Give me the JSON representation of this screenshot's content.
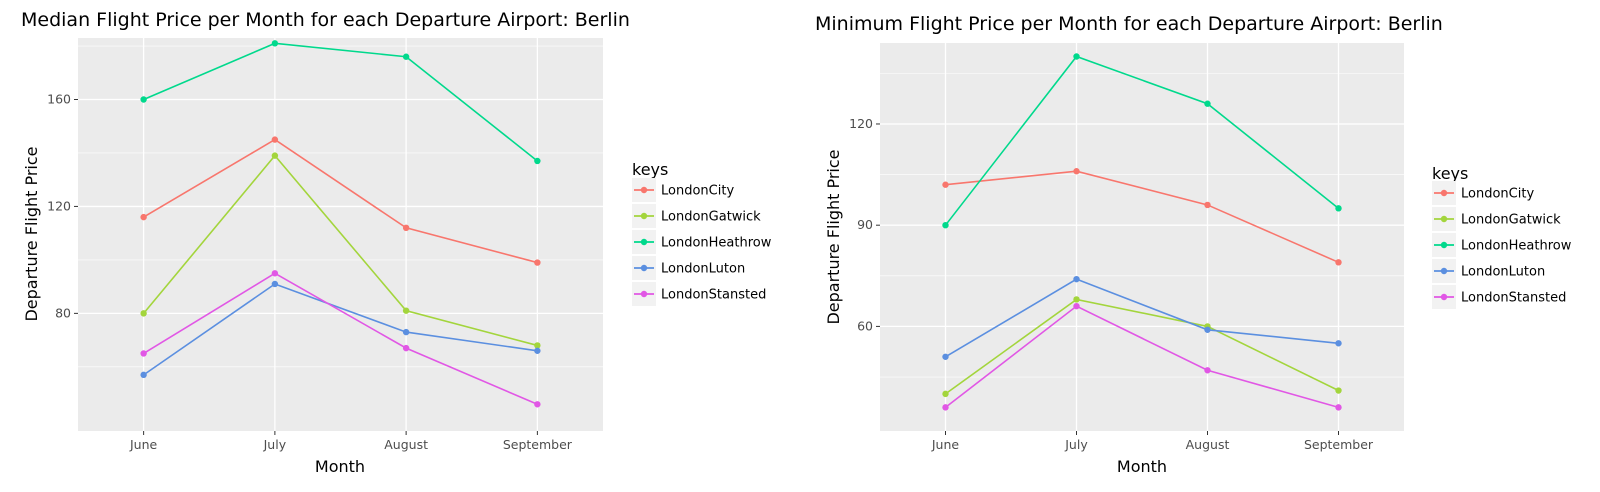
{
  "colors": {
    "panel_bg": "#EBEBEB",
    "grid_major": "#FFFFFF",
    "legend_key_bg": "#F2F2F2"
  },
  "legend": {
    "title": "keys",
    "entries": [
      {
        "name": "LondonCity",
        "color": "#F8766D"
      },
      {
        "name": "LondonGatwick",
        "color": "#A3D53C"
      },
      {
        "name": "LondonHeathrow",
        "color": "#00D98C"
      },
      {
        "name": "LondonLuton",
        "color": "#5B8FE0"
      },
      {
        "name": "LondonStansted",
        "color": "#E157E5"
      }
    ]
  },
  "chart_data": [
    {
      "type": "line",
      "title": "Median Flight Price per Month for each Departure Airport: Berlin",
      "xlabel": "Month",
      "ylabel": "Departure Flight Price",
      "categories": [
        "June",
        "July",
        "August",
        "September"
      ],
      "ylim": [
        36,
        183
      ],
      "yticks": [
        80,
        120,
        160
      ],
      "grid": true,
      "legend_position": "right",
      "series": [
        {
          "name": "LondonCity",
          "values": [
            116,
            145,
            112,
            99
          ]
        },
        {
          "name": "LondonGatwick",
          "values": [
            80,
            139,
            81,
            68
          ]
        },
        {
          "name": "LondonHeathrow",
          "values": [
            160,
            181,
            176,
            137
          ]
        },
        {
          "name": "LondonLuton",
          "values": [
            57,
            91,
            73,
            66
          ]
        },
        {
          "name": "LondonStansted",
          "values": [
            65,
            95,
            67,
            46
          ]
        }
      ]
    },
    {
      "type": "line",
      "title": "Minimum Flight Price per Month for each Departure Airport: Berlin",
      "xlabel": "Month",
      "ylabel": "Departure Flight Price",
      "categories": [
        "June",
        "July",
        "August",
        "September"
      ],
      "ylim": [
        29,
        144
      ],
      "yticks": [
        60,
        90,
        120
      ],
      "grid": true,
      "legend_position": "right",
      "series": [
        {
          "name": "LondonCity",
          "values": [
            102,
            106,
            96,
            79
          ]
        },
        {
          "name": "LondonGatwick",
          "values": [
            40,
            68,
            60,
            41
          ]
        },
        {
          "name": "LondonHeathrow",
          "values": [
            90,
            140,
            126,
            95
          ]
        },
        {
          "name": "LondonLuton",
          "values": [
            51,
            74,
            59,
            55
          ]
        },
        {
          "name": "LondonStansted",
          "values": [
            36,
            66,
            47,
            36
          ]
        }
      ]
    }
  ]
}
